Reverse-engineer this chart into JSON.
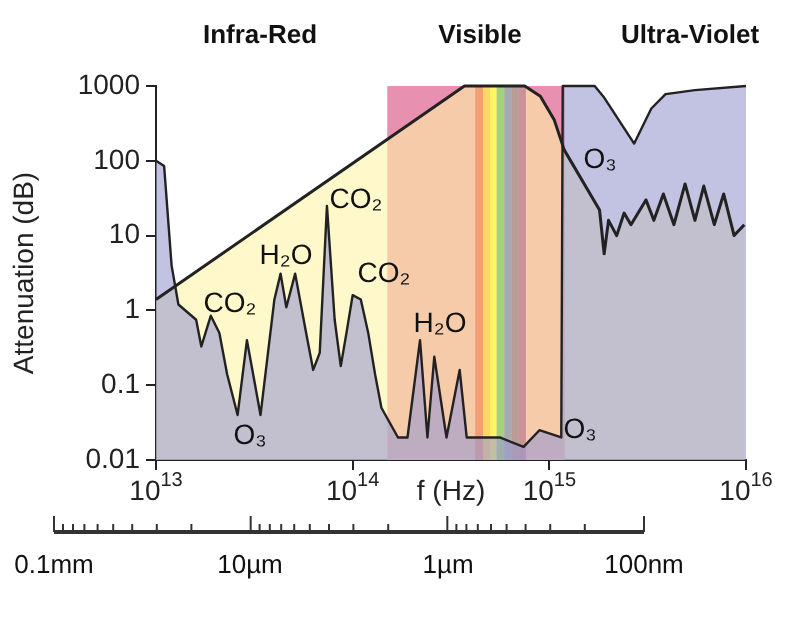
{
  "chart_data": {
    "type": "area",
    "xlabel": "f (Hz)",
    "ylabel": "Attenuation (dB)",
    "log": "xy",
    "xlim": [
      10000000000000.0,
      1e+16
    ],
    "xticks": [
      {
        "value": 10000000000000.0,
        "label": "10$^{13}$"
      },
      {
        "value": 100000000000000.0,
        "label": "10$^{14}$"
      },
      {
        "value": 1000000000000000.0,
        "label": "10$^{15}$"
      },
      {
        "value": 1e+16,
        "label": "10$^{16}$"
      }
    ],
    "ylim": [
      0.01,
      1000
    ],
    "yticks": [
      0.01,
      0.1,
      1,
      10,
      100,
      1000
    ],
    "series": [
      {
        "color": "#9a9ad0",
        "x": [
          10000000000000.0,
          11000000000000.0,
          12000000000000.0,
          13000000000000.0,
          16000000000000.0,
          17000000000000.0,
          19000000000000.0,
          21000000000000.0,
          23000000000000.0,
          26000000000000.0,
          29000000000000.0,
          34000000000000.0,
          40000000000000.0,
          43000000000000.0,
          46000000000000.0,
          51000000000000.0,
          58000000000000.0,
          63000000000000.0,
          68000000000000.0,
          74000000000000.0,
          81000000000000.0,
          87000000000000.0,
          93000000000000.0,
          100000000000000.0,
          110000000000000.0,
          120000000000000.0,
          130000000000000.0,
          140000000000000.0,
          170000000000000.0,
          190000000000000.0,
          220000000000000.0,
          240000000000000.0,
          260000000000000.0,
          300000000000000.0,
          350000000000000.0,
          380000000000000.0,
          560000000000000.0,
          740000000000000.0,
          890000000000000.0,
          1150000000000000.0,
          1170000000000000.0,
          1700000000000000.0,
          1900000000000000.0,
          2700000000000000.0,
          3300000000000000.0,
          3900000000000000.0,
          5500000000000000.0,
          1e+16
        ],
        "values": [
          100,
          85,
          4,
          1.2,
          0.75,
          0.33,
          0.85,
          0.5,
          0.14,
          0.04,
          0.4,
          0.04,
          1.4,
          3.1,
          1.1,
          3.1,
          0.5,
          0.16,
          0.27,
          25,
          0.75,
          0.18,
          0.5,
          1.6,
          1.4,
          0.5,
          0.14,
          0.05,
          0.02,
          0.02,
          0.4,
          0.02,
          0.24,
          0.02,
          0.16,
          0.02,
          0.02,
          0.015,
          0.025,
          0.02,
          1000,
          1000,
          700,
          170,
          500,
          780,
          880,
          1000
        ]
      },
      {
        "type": "line",
        "color": "#222222",
        "x": [
          10000000000000.0,
          370000000000000.0,
          750000000000000.0,
          900000000000000.0,
          1060000000000000.0,
          1190000000000000.0,
          1800000000000000.0,
          1900000000000000.0,
          2000000000000000.0,
          2200000000000000.0,
          2400000000000000.0,
          2600000000000000.0,
          3100000000000000.0,
          3400000000000000.0,
          3800000000000000.0,
          4300000000000000.0,
          4900000000000000.0,
          5500000000000000.0,
          6100000000000000.0,
          6900000000000000.0,
          7700000000000000.0,
          8700000000000000.0,
          9800000000000000.0
        ],
        "values": [
          1.4,
          1000,
          1000,
          730,
          350,
          140,
          22,
          5.7,
          16,
          10,
          20,
          14,
          30,
          16,
          36,
          14,
          49,
          16,
          46,
          14,
          36,
          10,
          14
        ]
      }
    ],
    "bands": [
      {
        "axis": "x",
        "from": 150000000000000.0,
        "to": 1200000000000000.0,
        "color": "#e890b0"
      },
      {
        "axis": "x",
        "from": 420000000000000.0,
        "to": 460000000000000.0,
        "color": "#e0202c"
      },
      {
        "axis": "x",
        "from": 460000000000000.0,
        "to": 500000000000000.0,
        "color": "#ffb000"
      },
      {
        "axis": "x",
        "from": 500000000000000.0,
        "to": 540000000000000.0,
        "color": "#ffff00"
      },
      {
        "axis": "x",
        "from": 540000000000000.0,
        "to": 590000000000000.0,
        "color": "#1aa040"
      },
      {
        "axis": "x",
        "from": 590000000000000.0,
        "to": 640000000000000.0,
        "color": "#2040c0"
      },
      {
        "axis": "x",
        "from": 640000000000000.0,
        "to": 700000000000000.0,
        "color": "#502080"
      },
      {
        "axis": "x",
        "from": 700000000000000.0,
        "to": 760000000000000.0,
        "color": "#800080"
      }
    ],
    "annotations": [
      "Infra-Red",
      "Visible",
      "Ultra-Violet",
      "CO₂",
      "H₂O",
      "CO₂",
      "CO₂",
      "O₃",
      "H₂O",
      "O₃",
      "O₃",
      "0.1mm",
      "10µm",
      "1µm",
      "100nm"
    ]
  }
}
